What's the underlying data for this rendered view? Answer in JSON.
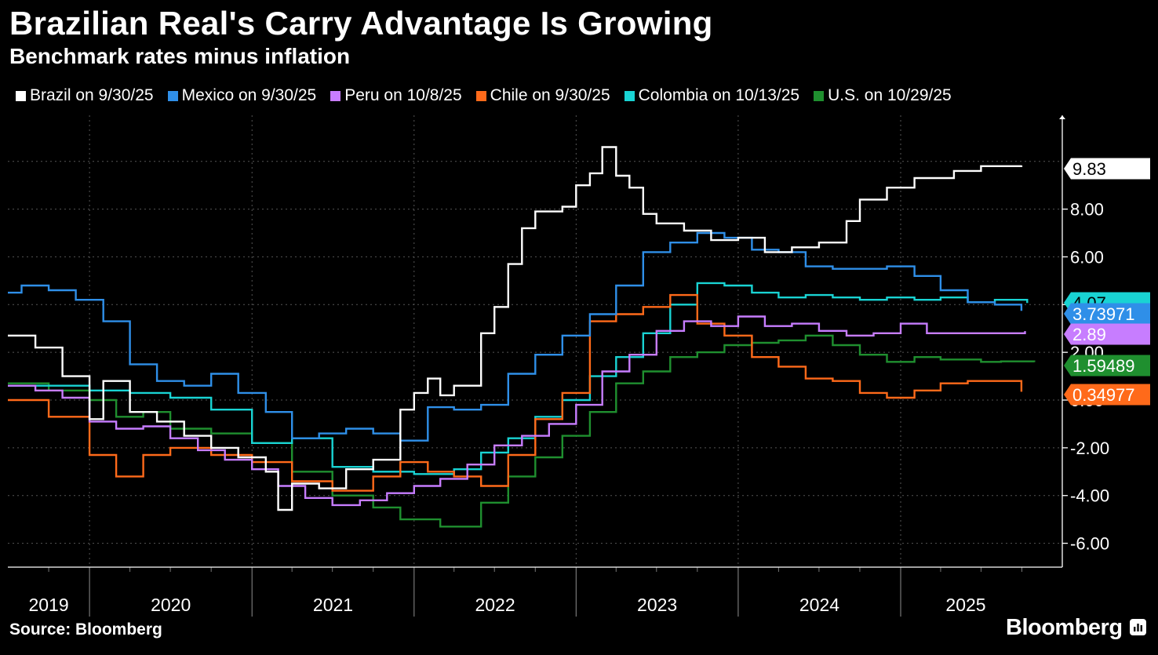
{
  "header": {
    "title": "Brazilian Real's Carry Advantage Is Growing",
    "subtitle": "Benchmark rates minus inflation"
  },
  "footer": {
    "source": "Source: Bloomberg",
    "brand": "Bloomberg"
  },
  "legend": [
    {
      "label": "Brazil on 9/30/25",
      "color": "#ffffff"
    },
    {
      "label": "Mexico on 9/30/25",
      "color": "#2f8fe8"
    },
    {
      "label": "Peru on 10/8/25",
      "color": "#c77dff"
    },
    {
      "label": "Chile on 9/30/25",
      "color": "#ff6a1a"
    },
    {
      "label": "Colombia on 10/13/25",
      "color": "#19d3d3"
    },
    {
      "label": "U.S. on 10/29/25",
      "color": "#1f8f2f"
    }
  ],
  "chart_data": {
    "type": "line",
    "title": "Brazilian Real's Carry Advantage Is Growing",
    "subtitle": "Benchmark rates minus inflation",
    "ylim": [
      -7.0,
      11.93
    ],
    "yticks": [
      "-6.00",
      "-4.00",
      "-2.00",
      "0.00",
      "2.00",
      "4.00",
      "6.00",
      "8.00"
    ],
    "xlim": [
      "2019-07-01",
      "2025-12-31"
    ],
    "x_year_labels": [
      "2019",
      "2020",
      "2021",
      "2022",
      "2023",
      "2024",
      "2025"
    ],
    "grid": true,
    "legend_position": "top",
    "series": [
      {
        "name": "Brazil on 9/30/25",
        "color": "#ffffff",
        "last_label": "9.83",
        "points": [
          [
            "2019-07-01",
            2.7
          ],
          [
            "2019-09-01",
            2.2
          ],
          [
            "2019-11-01",
            1.0
          ],
          [
            "2020-01-01",
            -0.8
          ],
          [
            "2020-02-01",
            0.8
          ],
          [
            "2020-04-01",
            -0.5
          ],
          [
            "2020-06-01",
            -0.9
          ],
          [
            "2020-08-01",
            -1.5
          ],
          [
            "2020-10-01",
            -2.0
          ],
          [
            "2020-12-01",
            -2.4
          ],
          [
            "2021-02-01",
            -3.0
          ],
          [
            "2021-03-01",
            -4.6
          ],
          [
            "2021-04-01",
            -3.5
          ],
          [
            "2021-06-01",
            -3.7
          ],
          [
            "2021-08-01",
            -2.9
          ],
          [
            "2021-10-01",
            -2.5
          ],
          [
            "2021-12-01",
            -0.4
          ],
          [
            "2022-01-01",
            0.3
          ],
          [
            "2022-02-01",
            0.9
          ],
          [
            "2022-03-01",
            0.2
          ],
          [
            "2022-04-01",
            0.6
          ],
          [
            "2022-06-01",
            2.8
          ],
          [
            "2022-07-01",
            3.9
          ],
          [
            "2022-08-01",
            5.7
          ],
          [
            "2022-09-01",
            7.2
          ],
          [
            "2022-10-01",
            7.9
          ],
          [
            "2022-12-01",
            8.1
          ],
          [
            "2023-01-01",
            9.0
          ],
          [
            "2023-02-01",
            9.5
          ],
          [
            "2023-03-01",
            10.6
          ],
          [
            "2023-04-01",
            9.4
          ],
          [
            "2023-05-01",
            8.9
          ],
          [
            "2023-06-01",
            7.8
          ],
          [
            "2023-07-01",
            7.4
          ],
          [
            "2023-09-01",
            7.1
          ],
          [
            "2023-11-01",
            6.7
          ],
          [
            "2024-01-01",
            6.8
          ],
          [
            "2024-03-01",
            6.2
          ],
          [
            "2024-05-01",
            6.4
          ],
          [
            "2024-07-01",
            6.6
          ],
          [
            "2024-09-01",
            7.5
          ],
          [
            "2024-10-01",
            8.4
          ],
          [
            "2024-12-01",
            8.9
          ],
          [
            "2025-02-01",
            9.3
          ],
          [
            "2025-05-01",
            9.6
          ],
          [
            "2025-07-01",
            9.8
          ],
          [
            "2025-09-30",
            9.83
          ]
        ]
      },
      {
        "name": "Mexico on 9/30/25",
        "color": "#2f8fe8",
        "last_label": "3.73971",
        "points": [
          [
            "2019-07-01",
            4.5
          ],
          [
            "2019-08-01",
            4.8
          ],
          [
            "2019-10-01",
            4.6
          ],
          [
            "2019-12-01",
            4.2
          ],
          [
            "2020-02-01",
            3.3
          ],
          [
            "2020-04-01",
            1.5
          ],
          [
            "2020-06-01",
            0.8
          ],
          [
            "2020-08-01",
            0.6
          ],
          [
            "2020-10-01",
            1.1
          ],
          [
            "2020-12-01",
            0.3
          ],
          [
            "2021-02-01",
            -0.5
          ],
          [
            "2021-04-01",
            -1.6
          ],
          [
            "2021-06-01",
            -1.4
          ],
          [
            "2021-08-01",
            -1.2
          ],
          [
            "2021-10-01",
            -1.4
          ],
          [
            "2021-12-01",
            -1.7
          ],
          [
            "2022-02-01",
            -0.3
          ],
          [
            "2022-04-01",
            -0.4
          ],
          [
            "2022-06-01",
            -0.2
          ],
          [
            "2022-08-01",
            1.1
          ],
          [
            "2022-10-01",
            1.9
          ],
          [
            "2022-12-01",
            2.7
          ],
          [
            "2023-02-01",
            3.6
          ],
          [
            "2023-04-01",
            4.8
          ],
          [
            "2023-06-01",
            6.2
          ],
          [
            "2023-08-01",
            6.6
          ],
          [
            "2023-10-01",
            7.0
          ],
          [
            "2023-12-01",
            6.8
          ],
          [
            "2024-02-01",
            6.3
          ],
          [
            "2024-04-01",
            6.2
          ],
          [
            "2024-06-01",
            5.6
          ],
          [
            "2024-08-01",
            5.5
          ],
          [
            "2024-10-01",
            5.5
          ],
          [
            "2024-12-01",
            5.6
          ],
          [
            "2025-02-01",
            5.2
          ],
          [
            "2025-04-01",
            4.6
          ],
          [
            "2025-06-01",
            4.1
          ],
          [
            "2025-08-01",
            4.0
          ],
          [
            "2025-09-30",
            3.74
          ]
        ]
      },
      {
        "name": "Peru on 10/8/25",
        "color": "#c77dff",
        "last_label": "2.89",
        "points": [
          [
            "2019-07-01",
            0.6
          ],
          [
            "2019-09-01",
            0.4
          ],
          [
            "2019-11-01",
            0.1
          ],
          [
            "2020-01-01",
            -0.9
          ],
          [
            "2020-03-01",
            -1.2
          ],
          [
            "2020-05-01",
            -1.1
          ],
          [
            "2020-07-01",
            -1.6
          ],
          [
            "2020-09-01",
            -2.1
          ],
          [
            "2020-11-01",
            -2.5
          ],
          [
            "2021-01-01",
            -2.9
          ],
          [
            "2021-03-01",
            -3.6
          ],
          [
            "2021-05-01",
            -4.1
          ],
          [
            "2021-07-01",
            -4.4
          ],
          [
            "2021-09-01",
            -4.2
          ],
          [
            "2021-11-01",
            -3.9
          ],
          [
            "2022-01-01",
            -3.6
          ],
          [
            "2022-03-01",
            -3.3
          ],
          [
            "2022-05-01",
            -2.7
          ],
          [
            "2022-07-01",
            -1.9
          ],
          [
            "2022-09-01",
            -1.5
          ],
          [
            "2022-11-01",
            -1.0
          ],
          [
            "2023-01-01",
            -0.2
          ],
          [
            "2023-03-01",
            1.2
          ],
          [
            "2023-05-01",
            1.9
          ],
          [
            "2023-07-01",
            2.9
          ],
          [
            "2023-09-01",
            3.3
          ],
          [
            "2023-11-01",
            3.1
          ],
          [
            "2024-01-01",
            3.5
          ],
          [
            "2024-03-01",
            3.1
          ],
          [
            "2024-05-01",
            3.2
          ],
          [
            "2024-07-01",
            2.9
          ],
          [
            "2024-09-01",
            2.7
          ],
          [
            "2024-11-01",
            2.8
          ],
          [
            "2025-01-01",
            3.2
          ],
          [
            "2025-03-01",
            2.8
          ],
          [
            "2025-06-01",
            2.8
          ],
          [
            "2025-10-08",
            2.89
          ]
        ]
      },
      {
        "name": "Chile on 9/30/25",
        "color": "#ff6a1a",
        "last_label": "0.34977",
        "points": [
          [
            "2019-07-01",
            0.0
          ],
          [
            "2019-10-01",
            -0.7
          ],
          [
            "2020-01-01",
            -2.3
          ],
          [
            "2020-03-01",
            -3.2
          ],
          [
            "2020-05-01",
            -2.3
          ],
          [
            "2020-07-01",
            -2.0
          ],
          [
            "2020-10-01",
            -2.3
          ],
          [
            "2021-01-01",
            -2.6
          ],
          [
            "2021-04-01",
            -3.4
          ],
          [
            "2021-07-01",
            -3.8
          ],
          [
            "2021-10-01",
            -3.2
          ],
          [
            "2021-12-01",
            -2.6
          ],
          [
            "2022-02-01",
            -3.0
          ],
          [
            "2022-04-01",
            -3.2
          ],
          [
            "2022-06-01",
            -3.6
          ],
          [
            "2022-08-01",
            -2.3
          ],
          [
            "2022-10-01",
            -0.8
          ],
          [
            "2022-12-01",
            0.3
          ],
          [
            "2023-02-01",
            3.3
          ],
          [
            "2023-04-01",
            3.6
          ],
          [
            "2023-06-01",
            3.9
          ],
          [
            "2023-08-01",
            4.4
          ],
          [
            "2023-10-01",
            3.2
          ],
          [
            "2023-12-01",
            2.7
          ],
          [
            "2024-02-01",
            1.8
          ],
          [
            "2024-04-01",
            1.4
          ],
          [
            "2024-06-01",
            0.9
          ],
          [
            "2024-08-01",
            0.8
          ],
          [
            "2024-10-01",
            0.3
          ],
          [
            "2024-12-01",
            0.1
          ],
          [
            "2025-02-01",
            0.4
          ],
          [
            "2025-04-01",
            0.7
          ],
          [
            "2025-06-01",
            0.8
          ],
          [
            "2025-09-30",
            0.35
          ]
        ]
      },
      {
        "name": "Colombia on 10/13/25",
        "color": "#19d3d3",
        "last_label": "4.07",
        "points": [
          [
            "2019-07-01",
            0.6
          ],
          [
            "2019-10-01",
            0.6
          ],
          [
            "2020-01-01",
            0.4
          ],
          [
            "2020-04-01",
            0.3
          ],
          [
            "2020-07-01",
            0.1
          ],
          [
            "2020-10-01",
            -0.4
          ],
          [
            "2021-01-01",
            -1.8
          ],
          [
            "2021-04-01",
            -1.6
          ],
          [
            "2021-07-01",
            -2.8
          ],
          [
            "2021-10-01",
            -3.0
          ],
          [
            "2022-01-01",
            -3.1
          ],
          [
            "2022-04-01",
            -2.9
          ],
          [
            "2022-06-01",
            -2.2
          ],
          [
            "2022-08-01",
            -1.6
          ],
          [
            "2022-10-01",
            -0.7
          ],
          [
            "2022-12-01",
            0.0
          ],
          [
            "2023-02-01",
            1.0
          ],
          [
            "2023-04-01",
            1.8
          ],
          [
            "2023-06-01",
            2.8
          ],
          [
            "2023-08-01",
            4.0
          ],
          [
            "2023-10-01",
            4.9
          ],
          [
            "2023-12-01",
            4.8
          ],
          [
            "2024-02-01",
            4.5
          ],
          [
            "2024-04-01",
            4.3
          ],
          [
            "2024-06-01",
            4.4
          ],
          [
            "2024-08-01",
            4.3
          ],
          [
            "2024-10-01",
            4.2
          ],
          [
            "2024-12-01",
            4.3
          ],
          [
            "2025-02-01",
            4.2
          ],
          [
            "2025-04-01",
            4.3
          ],
          [
            "2025-06-01",
            4.1
          ],
          [
            "2025-08-01",
            4.2
          ],
          [
            "2025-10-13",
            4.07
          ]
        ]
      },
      {
        "name": "U.S. on 10/29/25",
        "color": "#1f8f2f",
        "last_label": "1.59489",
        "points": [
          [
            "2019-07-01",
            0.7
          ],
          [
            "2019-10-01",
            0.4
          ],
          [
            "2020-01-01",
            0.0
          ],
          [
            "2020-03-01",
            -0.7
          ],
          [
            "2020-05-01",
            -0.5
          ],
          [
            "2020-07-01",
            -1.2
          ],
          [
            "2020-10-01",
            -1.4
          ],
          [
            "2021-01-01",
            -1.8
          ],
          [
            "2021-04-01",
            -3.0
          ],
          [
            "2021-07-01",
            -4.0
          ],
          [
            "2021-10-01",
            -4.5
          ],
          [
            "2021-12-01",
            -5.0
          ],
          [
            "2022-03-01",
            -5.3
          ],
          [
            "2022-06-01",
            -4.3
          ],
          [
            "2022-08-01",
            -3.2
          ],
          [
            "2022-10-01",
            -2.4
          ],
          [
            "2022-12-01",
            -1.5
          ],
          [
            "2023-02-01",
            -0.5
          ],
          [
            "2023-04-01",
            0.7
          ],
          [
            "2023-06-01",
            1.2
          ],
          [
            "2023-08-01",
            1.8
          ],
          [
            "2023-10-01",
            2.0
          ],
          [
            "2023-12-01",
            2.3
          ],
          [
            "2024-02-01",
            2.4
          ],
          [
            "2024-04-01",
            2.5
          ],
          [
            "2024-06-01",
            2.7
          ],
          [
            "2024-08-01",
            2.3
          ],
          [
            "2024-10-01",
            1.9
          ],
          [
            "2024-12-01",
            1.6
          ],
          [
            "2025-02-01",
            1.8
          ],
          [
            "2025-04-01",
            1.7
          ],
          [
            "2025-07-01",
            1.6
          ],
          [
            "2025-08-15",
            1.62
          ],
          [
            "2025-10-29",
            1.59
          ]
        ]
      }
    ]
  }
}
